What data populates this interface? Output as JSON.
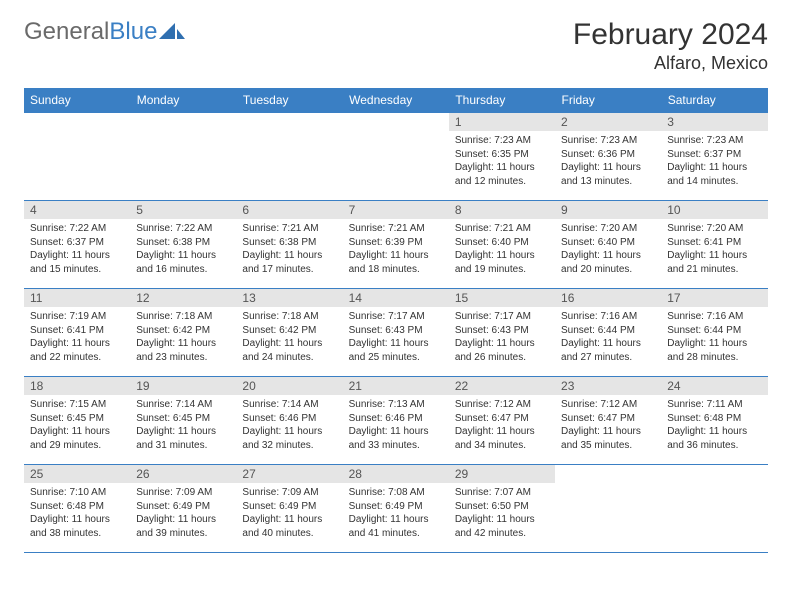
{
  "brand": {
    "part1": "General",
    "part2": "Blue"
  },
  "title": {
    "month": "February 2024",
    "location": "Alfaro, Mexico"
  },
  "colors": {
    "header_bg": "#3a7fc4",
    "daynum_bg": "#e5e5e5",
    "border": "#3a7fc4",
    "text": "#333333"
  },
  "weekdays": [
    "Sunday",
    "Monday",
    "Tuesday",
    "Wednesday",
    "Thursday",
    "Friday",
    "Saturday"
  ],
  "weeks": [
    [
      null,
      null,
      null,
      null,
      {
        "n": "1",
        "sunrise": "7:23 AM",
        "sunset": "6:35 PM",
        "dl1": "Daylight: 11 hours",
        "dl2": "and 12 minutes."
      },
      {
        "n": "2",
        "sunrise": "7:23 AM",
        "sunset": "6:36 PM",
        "dl1": "Daylight: 11 hours",
        "dl2": "and 13 minutes."
      },
      {
        "n": "3",
        "sunrise": "7:23 AM",
        "sunset": "6:37 PM",
        "dl1": "Daylight: 11 hours",
        "dl2": "and 14 minutes."
      }
    ],
    [
      {
        "n": "4",
        "sunrise": "7:22 AM",
        "sunset": "6:37 PM",
        "dl1": "Daylight: 11 hours",
        "dl2": "and 15 minutes."
      },
      {
        "n": "5",
        "sunrise": "7:22 AM",
        "sunset": "6:38 PM",
        "dl1": "Daylight: 11 hours",
        "dl2": "and 16 minutes."
      },
      {
        "n": "6",
        "sunrise": "7:21 AM",
        "sunset": "6:38 PM",
        "dl1": "Daylight: 11 hours",
        "dl2": "and 17 minutes."
      },
      {
        "n": "7",
        "sunrise": "7:21 AM",
        "sunset": "6:39 PM",
        "dl1": "Daylight: 11 hours",
        "dl2": "and 18 minutes."
      },
      {
        "n": "8",
        "sunrise": "7:21 AM",
        "sunset": "6:40 PM",
        "dl1": "Daylight: 11 hours",
        "dl2": "and 19 minutes."
      },
      {
        "n": "9",
        "sunrise": "7:20 AM",
        "sunset": "6:40 PM",
        "dl1": "Daylight: 11 hours",
        "dl2": "and 20 minutes."
      },
      {
        "n": "10",
        "sunrise": "7:20 AM",
        "sunset": "6:41 PM",
        "dl1": "Daylight: 11 hours",
        "dl2": "and 21 minutes."
      }
    ],
    [
      {
        "n": "11",
        "sunrise": "7:19 AM",
        "sunset": "6:41 PM",
        "dl1": "Daylight: 11 hours",
        "dl2": "and 22 minutes."
      },
      {
        "n": "12",
        "sunrise": "7:18 AM",
        "sunset": "6:42 PM",
        "dl1": "Daylight: 11 hours",
        "dl2": "and 23 minutes."
      },
      {
        "n": "13",
        "sunrise": "7:18 AM",
        "sunset": "6:42 PM",
        "dl1": "Daylight: 11 hours",
        "dl2": "and 24 minutes."
      },
      {
        "n": "14",
        "sunrise": "7:17 AM",
        "sunset": "6:43 PM",
        "dl1": "Daylight: 11 hours",
        "dl2": "and 25 minutes."
      },
      {
        "n": "15",
        "sunrise": "7:17 AM",
        "sunset": "6:43 PM",
        "dl1": "Daylight: 11 hours",
        "dl2": "and 26 minutes."
      },
      {
        "n": "16",
        "sunrise": "7:16 AM",
        "sunset": "6:44 PM",
        "dl1": "Daylight: 11 hours",
        "dl2": "and 27 minutes."
      },
      {
        "n": "17",
        "sunrise": "7:16 AM",
        "sunset": "6:44 PM",
        "dl1": "Daylight: 11 hours",
        "dl2": "and 28 minutes."
      }
    ],
    [
      {
        "n": "18",
        "sunrise": "7:15 AM",
        "sunset": "6:45 PM",
        "dl1": "Daylight: 11 hours",
        "dl2": "and 29 minutes."
      },
      {
        "n": "19",
        "sunrise": "7:14 AM",
        "sunset": "6:45 PM",
        "dl1": "Daylight: 11 hours",
        "dl2": "and 31 minutes."
      },
      {
        "n": "20",
        "sunrise": "7:14 AM",
        "sunset": "6:46 PM",
        "dl1": "Daylight: 11 hours",
        "dl2": "and 32 minutes."
      },
      {
        "n": "21",
        "sunrise": "7:13 AM",
        "sunset": "6:46 PM",
        "dl1": "Daylight: 11 hours",
        "dl2": "and 33 minutes."
      },
      {
        "n": "22",
        "sunrise": "7:12 AM",
        "sunset": "6:47 PM",
        "dl1": "Daylight: 11 hours",
        "dl2": "and 34 minutes."
      },
      {
        "n": "23",
        "sunrise": "7:12 AM",
        "sunset": "6:47 PM",
        "dl1": "Daylight: 11 hours",
        "dl2": "and 35 minutes."
      },
      {
        "n": "24",
        "sunrise": "7:11 AM",
        "sunset": "6:48 PM",
        "dl1": "Daylight: 11 hours",
        "dl2": "and 36 minutes."
      }
    ],
    [
      {
        "n": "25",
        "sunrise": "7:10 AM",
        "sunset": "6:48 PM",
        "dl1": "Daylight: 11 hours",
        "dl2": "and 38 minutes."
      },
      {
        "n": "26",
        "sunrise": "7:09 AM",
        "sunset": "6:49 PM",
        "dl1": "Daylight: 11 hours",
        "dl2": "and 39 minutes."
      },
      {
        "n": "27",
        "sunrise": "7:09 AM",
        "sunset": "6:49 PM",
        "dl1": "Daylight: 11 hours",
        "dl2": "and 40 minutes."
      },
      {
        "n": "28",
        "sunrise": "7:08 AM",
        "sunset": "6:49 PM",
        "dl1": "Daylight: 11 hours",
        "dl2": "and 41 minutes."
      },
      {
        "n": "29",
        "sunrise": "7:07 AM",
        "sunset": "6:50 PM",
        "dl1": "Daylight: 11 hours",
        "dl2": "and 42 minutes."
      },
      null,
      null
    ]
  ],
  "labels": {
    "sunrise_prefix": "Sunrise: ",
    "sunset_prefix": "Sunset: "
  }
}
